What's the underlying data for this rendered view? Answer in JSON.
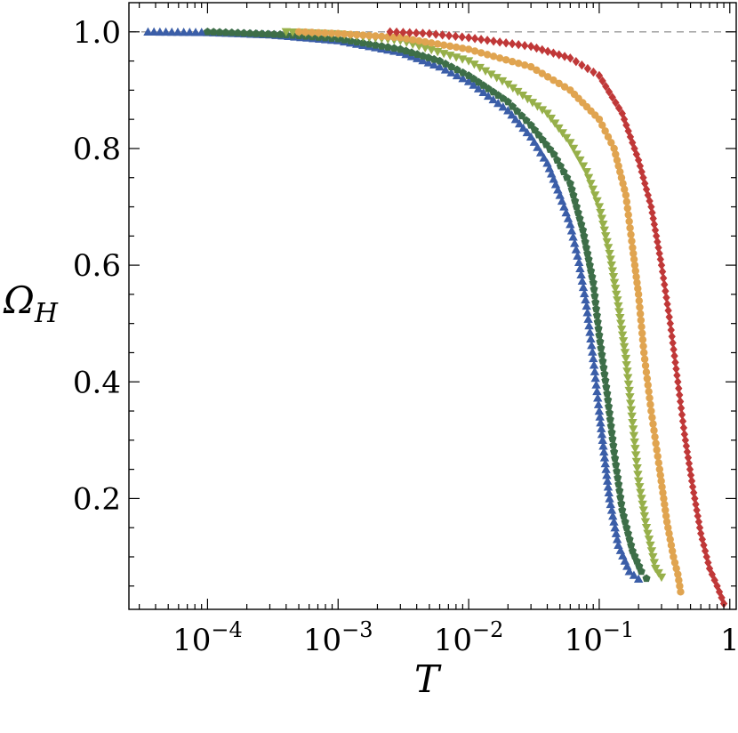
{
  "chart_data": {
    "type": "scatter",
    "title": "",
    "xlabel": "T",
    "ylabel_main": "Ω",
    "ylabel_sub": "H",
    "xscale": "log",
    "xlim": [
      2.5e-05,
      1.12
    ],
    "ylim": [
      0.01,
      1.05
    ],
    "x_ticks": [
      {
        "value": 0.0001,
        "base": "10",
        "exp": "−4"
      },
      {
        "value": 0.001,
        "base": "10",
        "exp": "−3"
      },
      {
        "value": 0.01,
        "base": "10",
        "exp": "−2"
      },
      {
        "value": 0.1,
        "base": "10",
        "exp": "−1"
      },
      {
        "value": 1,
        "base": "1",
        "exp": ""
      }
    ],
    "y_ticks": [
      {
        "value": 0.2,
        "label": "0.2"
      },
      {
        "value": 0.4,
        "label": "0.4"
      },
      {
        "value": 0.6,
        "label": "0.6"
      },
      {
        "value": 0.8,
        "label": "0.8"
      },
      {
        "value": 1.0,
        "label": "1.0"
      }
    ],
    "reference_line": {
      "y": 1.0,
      "style": "dashed",
      "color": "#999999"
    },
    "grid": false,
    "legend": "none",
    "series": [
      {
        "color": "#3b5ea8",
        "marker": "triangle-up",
        "points": [
          [
            3.5e-05,
            1.0
          ],
          [
            0.0001,
            0.999
          ],
          [
            0.0003,
            0.995
          ],
          [
            0.001,
            0.985
          ],
          [
            0.003,
            0.965
          ],
          [
            0.006,
            0.94
          ],
          [
            0.01,
            0.915
          ],
          [
            0.02,
            0.865
          ],
          [
            0.03,
            0.82
          ],
          [
            0.04,
            0.775
          ],
          [
            0.05,
            0.72
          ],
          [
            0.06,
            0.67
          ],
          [
            0.07,
            0.605
          ],
          [
            0.08,
            0.53
          ],
          [
            0.09,
            0.44
          ],
          [
            0.1,
            0.35
          ],
          [
            0.11,
            0.27
          ],
          [
            0.12,
            0.2
          ],
          [
            0.14,
            0.12
          ],
          [
            0.17,
            0.075
          ],
          [
            0.2,
            0.062
          ]
        ]
      },
      {
        "color": "#3d6e48",
        "marker": "pentagon",
        "points": [
          [
            0.0001,
            1.0
          ],
          [
            0.0004,
            0.995
          ],
          [
            0.001,
            0.988
          ],
          [
            0.003,
            0.97
          ],
          [
            0.006,
            0.95
          ],
          [
            0.01,
            0.925
          ],
          [
            0.02,
            0.88
          ],
          [
            0.03,
            0.84
          ],
          [
            0.045,
            0.79
          ],
          [
            0.06,
            0.74
          ],
          [
            0.075,
            0.66
          ],
          [
            0.09,
            0.57
          ],
          [
            0.1,
            0.48
          ],
          [
            0.115,
            0.38
          ],
          [
            0.13,
            0.28
          ],
          [
            0.15,
            0.18
          ],
          [
            0.18,
            0.11
          ],
          [
            0.21,
            0.075
          ],
          [
            0.23,
            0.063
          ]
        ]
      },
      {
        "color": "#97b04a",
        "marker": "triangle-down",
        "points": [
          [
            0.0004,
            1.0
          ],
          [
            0.001,
            0.996
          ],
          [
            0.003,
            0.985
          ],
          [
            0.01,
            0.95
          ],
          [
            0.02,
            0.91
          ],
          [
            0.04,
            0.86
          ],
          [
            0.06,
            0.81
          ],
          [
            0.08,
            0.76
          ],
          [
            0.1,
            0.7
          ],
          [
            0.12,
            0.62
          ],
          [
            0.14,
            0.53
          ],
          [
            0.16,
            0.44
          ],
          [
            0.18,
            0.33
          ],
          [
            0.2,
            0.23
          ],
          [
            0.23,
            0.15
          ],
          [
            0.27,
            0.08
          ],
          [
            0.3,
            0.065
          ]
        ]
      },
      {
        "color": "#e0a450",
        "marker": "circle",
        "points": [
          [
            0.0005,
            1.0
          ],
          [
            0.001,
            0.997
          ],
          [
            0.003,
            0.99
          ],
          [
            0.01,
            0.97
          ],
          [
            0.03,
            0.94
          ],
          [
            0.06,
            0.9
          ],
          [
            0.1,
            0.85
          ],
          [
            0.13,
            0.8
          ],
          [
            0.16,
            0.72
          ],
          [
            0.18,
            0.63
          ],
          [
            0.2,
            0.55
          ],
          [
            0.22,
            0.45
          ],
          [
            0.25,
            0.35
          ],
          [
            0.29,
            0.25
          ],
          [
            0.33,
            0.16
          ],
          [
            0.37,
            0.1
          ],
          [
            0.4,
            0.07
          ],
          [
            0.42,
            0.04
          ]
        ]
      },
      {
        "color": "#c03838",
        "marker": "diamond",
        "points": [
          [
            0.0025,
            1.0
          ],
          [
            0.005,
            0.997
          ],
          [
            0.01,
            0.99
          ],
          [
            0.03,
            0.975
          ],
          [
            0.06,
            0.955
          ],
          [
            0.1,
            0.925
          ],
          [
            0.15,
            0.86
          ],
          [
            0.2,
            0.78
          ],
          [
            0.25,
            0.7
          ],
          [
            0.3,
            0.6
          ],
          [
            0.35,
            0.5
          ],
          [
            0.4,
            0.4
          ],
          [
            0.45,
            0.31
          ],
          [
            0.52,
            0.22
          ],
          [
            0.6,
            0.14
          ],
          [
            0.7,
            0.08
          ],
          [
            0.8,
            0.05
          ],
          [
            0.9,
            0.02
          ]
        ]
      }
    ]
  }
}
